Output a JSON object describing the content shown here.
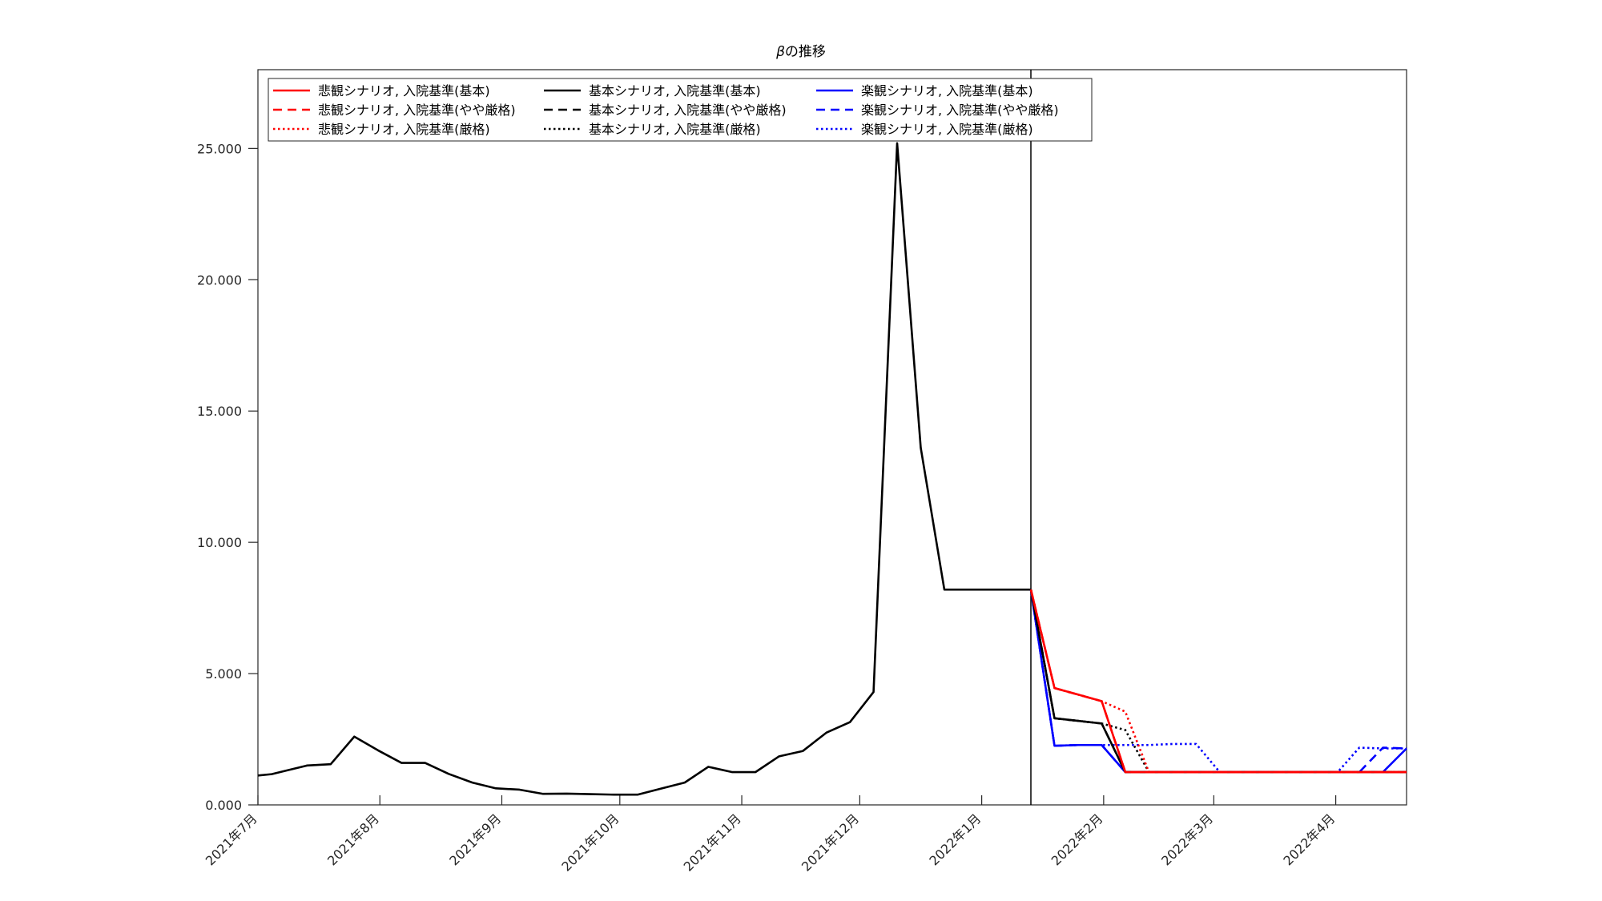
{
  "chart_data": {
    "type": "line",
    "title_symbol": "β",
    "title_rest": "の推移",
    "xlabel": "",
    "ylabel": "",
    "ylim": [
      0,
      28
    ],
    "grid": false,
    "legend_placement": "top-left",
    "y_ticks": [
      0,
      5,
      10,
      15,
      20,
      25
    ],
    "y_tick_labels": [
      "0.000",
      "5.000",
      "10.000",
      "15.000",
      "20.000",
      "25.000"
    ],
    "x_ticks": [
      {
        "day": 0,
        "label": "2021年7月"
      },
      {
        "day": 31,
        "label": "2021年8月"
      },
      {
        "day": 62,
        "label": "2021年9月"
      },
      {
        "day": 92,
        "label": "2021年10月"
      },
      {
        "day": 123,
        "label": "2021年11月"
      },
      {
        "day": 153,
        "label": "2021年12月"
      },
      {
        "day": 184,
        "label": "2022年1月"
      },
      {
        "day": 215,
        "label": "2022年2月"
      },
      {
        "day": 243,
        "label": "2022年3月"
      },
      {
        "day": 274,
        "label": "2022年4月"
      }
    ],
    "x_domain": [
      0,
      292
    ],
    "forecast_start_day": 196.5,
    "history": {
      "x": [
        0,
        3.5,
        6.5,
        12.5,
        18.5,
        24.5,
        30.5,
        36.5,
        42.5,
        48.5,
        54.5,
        60.5,
        66.5,
        72.5,
        78.5,
        84.5,
        90.5,
        96.5,
        102.5,
        108.5,
        114.5,
        120.5,
        126.5,
        132.5,
        138.5,
        144.5,
        150.5,
        156.5,
        162.5,
        168.5,
        174.5,
        178.5,
        184.5,
        190.5,
        196.5
      ],
      "y": [
        1.12,
        1.17,
        1.28,
        1.5,
        1.55,
        2.6,
        2.08,
        1.6,
        1.6,
        1.18,
        0.85,
        0.63,
        0.58,
        0.42,
        0.43,
        0.41,
        0.39,
        0.39,
        0.62,
        0.85,
        1.45,
        1.25,
        1.25,
        1.85,
        2.05,
        2.75,
        3.15,
        4.3,
        25.2,
        13.6,
        8.2,
        8.2,
        8.2,
        8.2,
        8.2
      ]
    },
    "series": [
      {
        "name": "悲観シナリオ, 入院基準(基本)",
        "color": "#ff0000",
        "dash": "solid",
        "x": [
          196.5,
          202.5,
          208.5,
          214.5,
          220.5,
          292
        ],
        "y": [
          8.2,
          4.45,
          4.2,
          3.95,
          1.25,
          1.25
        ]
      },
      {
        "name": "悲観シナリオ, 入院基準(やや厳格)",
        "color": "#ff0000",
        "dash": "dashed",
        "x": [
          196.5,
          202.5,
          208.5,
          214.5,
          220.5,
          292
        ],
        "y": [
          8.2,
          4.45,
          4.2,
          3.95,
          1.25,
          1.25
        ]
      },
      {
        "name": "悲観シナリオ, 入院基準(厳格)",
        "color": "#ff0000",
        "dash": "dotted",
        "x": [
          196.5,
          202.5,
          208.5,
          214.5,
          220.5,
          226.5,
          292
        ],
        "y": [
          8.2,
          4.45,
          4.2,
          3.95,
          3.55,
          1.25,
          1.25
        ]
      },
      {
        "name": "基本シナリオ, 入院基準(基本)",
        "color": "#000000",
        "dash": "solid",
        "x": [
          196.5,
          202.5,
          208.5,
          214.5,
          220.5,
          292
        ],
        "y": [
          8.2,
          3.3,
          3.2,
          3.1,
          1.25,
          1.25
        ]
      },
      {
        "name": "基本シナリオ, 入院基準(やや厳格)",
        "color": "#000000",
        "dash": "dashed",
        "x": [
          196.5,
          202.5,
          208.5,
          214.5,
          220.5,
          292
        ],
        "y": [
          8.2,
          3.3,
          3.2,
          3.1,
          1.25,
          1.25
        ]
      },
      {
        "name": "基本シナリオ, 入院基準(厳格)",
        "color": "#000000",
        "dash": "dotted",
        "x": [
          196.5,
          202.5,
          208.5,
          214.5,
          220.5,
          226.5,
          292
        ],
        "y": [
          8.2,
          3.3,
          3.2,
          3.1,
          2.85,
          1.25,
          1.25
        ]
      },
      {
        "name": "楽観シナリオ, 入院基準(基本)",
        "color": "#0000ff",
        "dash": "solid",
        "x": [
          196.5,
          202.5,
          208.5,
          214.5,
          220.5,
          286,
          292
        ],
        "y": [
          8.2,
          2.25,
          2.28,
          2.28,
          1.25,
          1.25,
          2.15
        ]
      },
      {
        "name": "楽観シナリオ, 入院基準(やや厳格)",
        "color": "#0000ff",
        "dash": "dashed",
        "x": [
          196.5,
          202.5,
          208.5,
          214.5,
          220.5,
          280,
          286,
          292
        ],
        "y": [
          8.2,
          2.25,
          2.28,
          2.28,
          1.25,
          1.25,
          2.18,
          2.15
        ]
      },
      {
        "name": "楽観シナリオ, 入院基準(厳格)",
        "color": "#0000ff",
        "dash": "dotted",
        "x": [
          196.5,
          202.5,
          208.5,
          214.5,
          220.5,
          226.5,
          232.5,
          238.5,
          244.5,
          268.5,
          274.5,
          280,
          286,
          292
        ],
        "y": [
          8.2,
          2.25,
          2.28,
          2.28,
          2.28,
          2.28,
          2.32,
          2.32,
          1.25,
          1.25,
          1.25,
          2.18,
          2.15,
          2.15
        ]
      }
    ]
  }
}
